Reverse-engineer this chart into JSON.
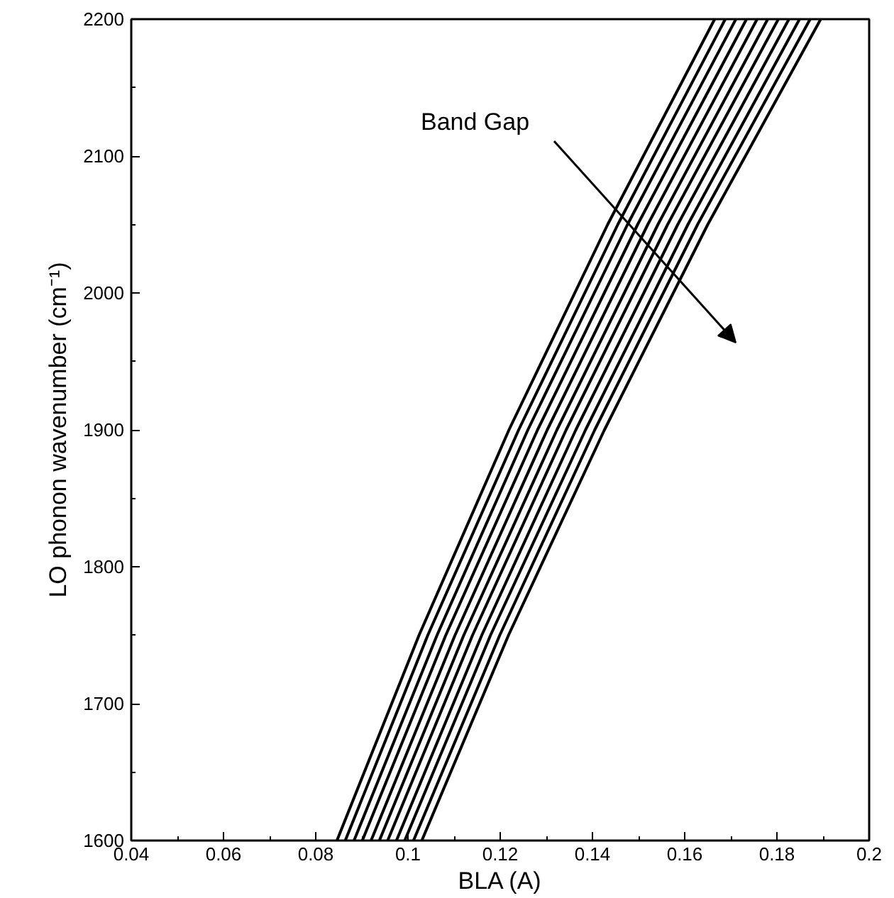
{
  "chart_data": {
    "type": "line",
    "xlabel": "BLA (A)",
    "ylabel": "LO phonon wavenumber (cm⁻¹)",
    "xlim": [
      0.04,
      0.2
    ],
    "xticks": [
      0.04,
      0.06,
      0.08,
      0.1,
      0.12,
      0.14,
      0.16,
      0.18,
      0.2
    ],
    "ylim": [
      1600,
      2200
    ],
    "yticks": [
      1600,
      1700,
      1800,
      1900,
      2000,
      2100,
      2200
    ],
    "grid": false,
    "marker": "none",
    "line_style": "solid",
    "annotations": [
      "Band Gap"
    ],
    "series": [
      {
        "color": "#000000",
        "x": [
          0.0846,
          0.1024,
          0.1219,
          0.1433,
          0.1665
        ],
        "values": [
          1600,
          1750,
          1900,
          2050,
          2200
        ]
      },
      {
        "color": "#000000",
        "x": [
          0.0864,
          0.1043,
          0.124,
          0.1455,
          0.1688
        ],
        "values": [
          1600,
          1750,
          1900,
          2050,
          2200
        ]
      },
      {
        "color": "#000000",
        "x": [
          0.0883,
          0.1063,
          0.126,
          0.1476,
          0.1711
        ],
        "values": [
          1600,
          1750,
          1900,
          2050,
          2200
        ]
      },
      {
        "color": "#000000",
        "x": [
          0.0901,
          0.1082,
          0.1281,
          0.1498,
          0.1734
        ],
        "values": [
          1600,
          1750,
          1900,
          2050,
          2200
        ]
      },
      {
        "color": "#000000",
        "x": [
          0.092,
          0.1102,
          0.1302,
          0.152,
          0.1757
        ],
        "values": [
          1600,
          1750,
          1900,
          2050,
          2200
        ]
      },
      {
        "color": "#000000",
        "x": [
          0.0938,
          0.1121,
          0.1323,
          0.1542,
          0.178
        ],
        "values": [
          1600,
          1750,
          1900,
          2050,
          2200
        ]
      },
      {
        "color": "#000000",
        "x": [
          0.0956,
          0.114,
          0.1343,
          0.1563,
          0.1803
        ],
        "values": [
          1600,
          1750,
          1900,
          2050,
          2200
        ]
      },
      {
        "color": "#000000",
        "x": [
          0.0975,
          0.116,
          0.1364,
          0.1585,
          0.1826
        ],
        "values": [
          1600,
          1750,
          1900,
          2050,
          2200
        ]
      },
      {
        "color": "#000000",
        "x": [
          0.0993,
          0.1179,
          0.1385,
          0.1607,
          0.1849
        ],
        "values": [
          1600,
          1750,
          1900,
          2050,
          2200
        ]
      },
      {
        "color": "#000000",
        "x": [
          0.1012,
          0.1199,
          0.1405,
          0.1628,
          0.1872
        ],
        "values": [
          1600,
          1750,
          1900,
          2050,
          2200
        ]
      },
      {
        "color": "#000000",
        "x": [
          0.103,
          0.1218,
          0.1426,
          0.165,
          0.1895
        ],
        "values": [
          1600,
          1750,
          1900,
          2050,
          2200
        ]
      }
    ]
  }
}
